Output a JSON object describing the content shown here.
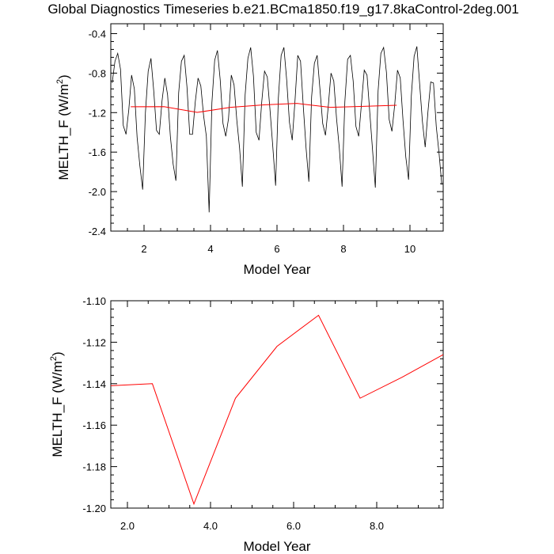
{
  "title": "Global Diagnostics Timeseries b.e21.BCma1850.f19_g17.8kaControl-2deg.001",
  "colors": {
    "monthly_line": "#000000",
    "annual_line": "#ff0000",
    "frame": "#000000"
  },
  "chart_data": [
    {
      "type": "line",
      "id": "top",
      "xlabel": "Model Year",
      "ylabel": "MELTH_F (W/m",
      "ylabel_sup": "2",
      "ylabel_close": ")",
      "xlim": [
        1.0,
        11.0
      ],
      "ylim": [
        -2.4,
        -0.3
      ],
      "xticks": [
        2,
        4,
        6,
        8,
        10
      ],
      "xtick_labels": [
        "2",
        "4",
        "6",
        "8",
        "10"
      ],
      "yticks": [
        -2.4,
        -2.0,
        -1.6,
        -1.2,
        -0.8,
        -0.4
      ],
      "ytick_labels": [
        "-2.4",
        "-2.0",
        "-1.6",
        "-1.2",
        "-0.8",
        "-0.4"
      ],
      "series": [
        {
          "name": "monthly",
          "color": "#000000",
          "x_start": 1.0417,
          "x_step": 0.08333,
          "values": [
            -0.9,
            -0.68,
            -0.6,
            -0.76,
            -1.33,
            -1.42,
            -1.17,
            -0.82,
            -0.96,
            -1.45,
            -1.74,
            -1.98,
            -1.2,
            -0.78,
            -0.65,
            -0.98,
            -1.38,
            -1.42,
            -1.08,
            -0.85,
            -1.02,
            -1.44,
            -1.72,
            -1.89,
            -1.0,
            -0.68,
            -0.62,
            -0.94,
            -1.42,
            -1.42,
            -1.09,
            -0.85,
            -0.93,
            -1.23,
            -1.44,
            -2.21,
            -1.1,
            -0.67,
            -0.57,
            -0.87,
            -1.31,
            -1.44,
            -1.26,
            -0.82,
            -0.92,
            -1.28,
            -1.56,
            -1.95,
            -1.02,
            -0.65,
            -0.54,
            -0.83,
            -1.4,
            -1.48,
            -1.09,
            -0.78,
            -0.84,
            -1.18,
            -1.55,
            -1.94,
            -1.05,
            -0.62,
            -0.54,
            -0.87,
            -1.3,
            -1.48,
            -1.08,
            -0.62,
            -0.68,
            -1.14,
            -1.56,
            -1.9,
            -1.04,
            -0.7,
            -0.62,
            -0.96,
            -1.31,
            -1.43,
            -1.14,
            -0.8,
            -0.88,
            -1.26,
            -1.56,
            -1.95,
            -1.09,
            -0.66,
            -0.62,
            -0.88,
            -1.34,
            -1.44,
            -1.11,
            -0.77,
            -0.82,
            -1.2,
            -1.58,
            -1.96,
            -0.98,
            -0.6,
            -0.54,
            -0.79,
            -1.27,
            -1.39,
            -1.12,
            -0.77,
            -0.85,
            -1.28,
            -1.65,
            -1.88,
            -1.03,
            -0.63,
            -0.53,
            -0.91,
            -1.29,
            -1.55,
            -1.19,
            -0.89,
            -0.9,
            -1.34,
            -1.61,
            -1.93
          ]
        },
        {
          "name": "annual",
          "color": "#ff0000",
          "x": [
            1.6,
            2.6,
            3.6,
            4.6,
            5.6,
            6.6,
            7.6,
            8.6,
            9.6
          ],
          "values": [
            -1.141,
            -1.14,
            -1.198,
            -1.147,
            -1.122,
            -1.107,
            -1.147,
            -1.137,
            -1.126
          ]
        }
      ]
    },
    {
      "type": "line",
      "id": "bottom",
      "xlabel": "Model Year",
      "ylabel": "MELTH_F (W/m",
      "ylabel_sup": "2",
      "ylabel_close": ")",
      "xlim": [
        1.6,
        9.6
      ],
      "ylim": [
        -1.2,
        -1.1
      ],
      "xticks": [
        2.0,
        4.0,
        6.0,
        8.0
      ],
      "xtick_labels": [
        "2.0",
        "4.0",
        "6.0",
        "8.0"
      ],
      "yticks": [
        -1.2,
        -1.18,
        -1.16,
        -1.14,
        -1.12,
        -1.1
      ],
      "ytick_labels": [
        "-1.20",
        "-1.18",
        "-1.16",
        "-1.14",
        "-1.12",
        "-1.10"
      ],
      "series": [
        {
          "name": "annual",
          "color": "#ff0000",
          "x": [
            1.6,
            2.6,
            3.6,
            4.6,
            5.6,
            6.6,
            7.6,
            8.6,
            9.6
          ],
          "values": [
            -1.141,
            -1.14,
            -1.198,
            -1.147,
            -1.122,
            -1.107,
            -1.147,
            -1.137,
            -1.126
          ]
        }
      ]
    }
  ]
}
